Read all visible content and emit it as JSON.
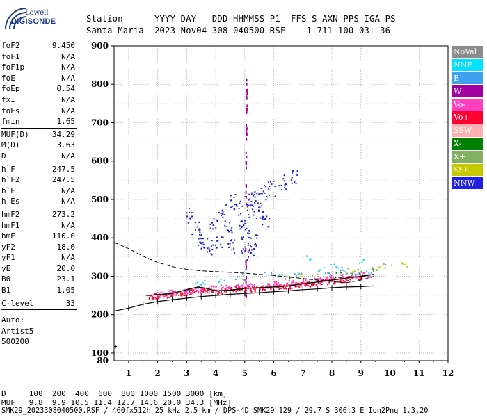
{
  "logo": {
    "line1": "Lowell",
    "line2": "DIGISONDE"
  },
  "header": {
    "line1": "Station      YYYY DAY   DDD HHMMSS P1  FFS S AXN PPS IGA PS",
    "line2": "Santa Maria  2023 Nov04 308 040500 RSF    1 711 100 03+ 36"
  },
  "params_group1": [
    {
      "label": "foF2",
      "value": "9.450"
    },
    {
      "label": "foF1",
      "value": "N/A"
    },
    {
      "label": "foF1p",
      "value": "N/A"
    },
    {
      "label": "foE",
      "value": "N/A"
    },
    {
      "label": "foEp",
      "value": "0.54"
    },
    {
      "label": "fxI",
      "value": "N/A"
    },
    {
      "label": "foEs",
      "value": "N/A"
    },
    {
      "label": "fmin",
      "value": "1.65"
    }
  ],
  "params_group2": [
    {
      "label": "MUF(D)",
      "value": "34.29"
    },
    {
      "label": "M(D)",
      "value": "3.63"
    },
    {
      "label": "D",
      "value": "N/A"
    }
  ],
  "params_group3": [
    {
      "label": "h`F",
      "value": "247.5"
    },
    {
      "label": "h`F2",
      "value": "247.5"
    },
    {
      "label": "h`E",
      "value": "N/A"
    },
    {
      "label": "h`Es",
      "value": "N/A"
    }
  ],
  "params_group4": [
    {
      "label": "hmF2",
      "value": "273.2"
    },
    {
      "label": "hmF1",
      "value": "N/A"
    },
    {
      "label": "hmE",
      "value": "110.0"
    },
    {
      "label": "yF2",
      "value": "18.6"
    },
    {
      "label": "yF1",
      "value": "N/A"
    },
    {
      "label": "yE",
      "value": "20.0"
    },
    {
      "label": "B0",
      "value": "23.1"
    },
    {
      "label": "B1",
      "value": "1.05"
    }
  ],
  "params_group5": [
    {
      "label": "C-level",
      "value": "33"
    }
  ],
  "autoscaling": {
    "line1": "Auto:",
    "line2": "Artist5",
    "line3": "500200"
  },
  "legend": [
    {
      "label": "NoVal",
      "color": "#8c8c8c"
    },
    {
      "label": "NNE",
      "color": "#00e0ff"
    },
    {
      "label": "E",
      "color": "#3fa0f0"
    },
    {
      "label": "W",
      "color": "#a000a0"
    },
    {
      "label": "Vo-",
      "color": "#ff40c0"
    },
    {
      "label": "Vo+",
      "color": "#ff0030"
    },
    {
      "label": "SSW",
      "color": "#ffb0b0"
    },
    {
      "label": "X-",
      "color": "#008000"
    },
    {
      "label": "X+",
      "color": "#80b060"
    },
    {
      "label": "SSE",
      "color": "#c8c800"
    },
    {
      "label": "NNW",
      "color": "#2020e0"
    }
  ],
  "footer": {
    "d_line": "D     100  200  400  600  800 1000 1500 3000 [km]",
    "muf_line": "MUF   9.8  9.9 10.5 11.4 12.7 14.6 20.0 34.3 [MHz]",
    "file_line": "SMK29_2023308040500.RSF / 460fx512h 25 kHz 2.5 km / DPS-4D SMK29 129 / 29.7 S 306.3 E Ion2Png 1.3.20"
  },
  "chart_data": {
    "type": "scatter",
    "title": "",
    "xlabel": "",
    "ylabel": "",
    "xlim": [
      0.5,
      12
    ],
    "ylim": [
      80,
      900
    ],
    "x_ticks": [
      "1",
      "2",
      "3",
      "4",
      "5",
      "6",
      "7",
      "8",
      "9",
      "10",
      "11",
      "12"
    ],
    "y_ticks": [
      "100",
      "200",
      "300",
      "400",
      "500",
      "600",
      "700",
      "800",
      "900"
    ],
    "y_tick_label_80": "80",
    "grid": "dotted",
    "series": [
      {
        "color": "#ff0030",
        "points": [
          [
            1.8,
            247
          ],
          [
            2.0,
            250
          ],
          [
            2.3,
            252
          ],
          [
            2.6,
            255
          ],
          [
            2.9,
            258
          ],
          [
            3.2,
            260
          ],
          [
            3.5,
            263
          ],
          [
            3.8,
            265
          ],
          [
            4.1,
            262
          ],
          [
            4.4,
            266
          ],
          [
            4.7,
            268
          ],
          [
            5.0,
            270
          ],
          [
            5.3,
            268
          ],
          [
            5.6,
            270
          ],
          [
            5.9,
            272
          ],
          [
            6.2,
            274
          ],
          [
            6.5,
            276
          ],
          [
            6.8,
            279
          ],
          [
            7.1,
            281
          ],
          [
            7.4,
            284
          ],
          [
            7.7,
            287
          ],
          [
            8.0,
            289
          ],
          [
            8.3,
            292
          ],
          [
            8.6,
            295
          ],
          [
            8.9,
            298
          ]
        ]
      },
      {
        "color": "#ff40c0",
        "points": [
          [
            2.1,
            254
          ],
          [
            2.5,
            258
          ],
          [
            3.0,
            262
          ],
          [
            3.4,
            266
          ],
          [
            3.9,
            270
          ],
          [
            4.3,
            272
          ],
          [
            4.8,
            274
          ],
          [
            5.2,
            276
          ],
          [
            5.7,
            278
          ],
          [
            6.1,
            282
          ],
          [
            6.6,
            285
          ],
          [
            7.0,
            288
          ],
          [
            7.5,
            292
          ],
          [
            7.9,
            296
          ],
          [
            8.4,
            300
          ],
          [
            8.8,
            304
          ],
          [
            9.2,
            306
          ]
        ]
      },
      {
        "color": "#2020e0",
        "points": [
          [
            3.1,
            460
          ],
          [
            3.3,
            430
          ],
          [
            3.5,
            400
          ],
          [
            3.6,
            380
          ],
          [
            3.9,
            440
          ],
          [
            4.2,
            470
          ],
          [
            4.4,
            430
          ],
          [
            4.6,
            495
          ],
          [
            4.8,
            480
          ],
          [
            4.9,
            445
          ],
          [
            5.0,
            420
          ],
          [
            5.1,
            500
          ],
          [
            5.2,
            475
          ],
          [
            5.3,
            390
          ],
          [
            5.4,
            510
          ],
          [
            5.5,
            470
          ],
          [
            5.6,
            520
          ],
          [
            5.7,
            440
          ],
          [
            5.9,
            530
          ],
          [
            6.3,
            545
          ],
          [
            6.7,
            560
          ],
          [
            4.5,
            380
          ],
          [
            4.1,
            395
          ],
          [
            3.8,
            375
          ],
          [
            5.0,
            380
          ],
          [
            5.2,
            360
          ]
        ]
      },
      {
        "color": "#a000a0",
        "points": [
          [
            5.02,
            520
          ],
          [
            5.03,
            600
          ],
          [
            5.04,
            680
          ],
          [
            5.05,
            760
          ],
          [
            5.05,
            790
          ],
          [
            5.02,
            350
          ],
          [
            5.02,
            280
          ]
        ]
      },
      {
        "color": "#00e0ff",
        "points": [
          [
            7.6,
            320
          ],
          [
            8.1,
            330
          ],
          [
            8.6,
            310
          ],
          [
            9.0,
            340
          ],
          [
            7.2,
            350
          ],
          [
            9.2,
            310
          ],
          [
            3.4,
            280
          ],
          [
            4.2,
            290
          ],
          [
            6.1,
            300
          ]
        ]
      },
      {
        "color": "#3fa0f0",
        "points": [
          [
            7.8,
            310
          ],
          [
            8.3,
            320
          ],
          [
            8.8,
            305
          ],
          [
            6.8,
            310
          ],
          [
            5.8,
            305
          ],
          [
            3.6,
            285
          ],
          [
            4.8,
            300
          ]
        ]
      },
      {
        "color": "#008000",
        "points": [
          [
            8.2,
            305
          ],
          [
            8.9,
            312
          ],
          [
            6.4,
            300
          ],
          [
            9.5,
            320
          ]
        ]
      },
      {
        "color": "#80b060",
        "points": [
          [
            7.4,
            300
          ],
          [
            8.5,
            315
          ],
          [
            4.9,
            290
          ],
          [
            9.9,
            330
          ]
        ]
      },
      {
        "color": "#c8c800",
        "points": [
          [
            8.7,
            310
          ],
          [
            9.6,
            320
          ],
          [
            6.9,
            300
          ],
          [
            10.5,
            330
          ]
        ]
      }
    ],
    "profile_curve": [
      [
        1.6,
        250
      ],
      [
        2.0,
        252
      ],
      [
        2.5,
        255
      ],
      [
        3.0,
        265
      ],
      [
        3.4,
        272
      ],
      [
        3.7,
        268
      ],
      [
        4.0,
        262
      ],
      [
        4.5,
        264
      ],
      [
        5.0,
        268
      ],
      [
        5.5,
        270
      ],
      [
        6.0,
        272
      ],
      [
        6.5,
        275
      ],
      [
        7.0,
        280
      ],
      [
        7.5,
        285
      ],
      [
        8.0,
        290
      ],
      [
        8.5,
        295
      ],
      [
        9.0,
        300
      ],
      [
        9.45,
        305
      ]
    ],
    "dashed_curve": [
      [
        0.5,
        388
      ],
      [
        1.0,
        372
      ],
      [
        1.5,
        352
      ],
      [
        2.0,
        336
      ],
      [
        2.5,
        325
      ],
      [
        3.0,
        318
      ],
      [
        3.5,
        314
      ],
      [
        4.0,
        312
      ],
      [
        4.5,
        310
      ],
      [
        5.0,
        308
      ],
      [
        5.5,
        305
      ],
      [
        6.0,
        302
      ],
      [
        6.5,
        298
      ],
      [
        7.0,
        294
      ],
      [
        7.5,
        290
      ],
      [
        8.0,
        286
      ],
      [
        8.5,
        283
      ],
      [
        9.0,
        290
      ],
      [
        9.45,
        300
      ]
    ],
    "valley_profile": [
      [
        0.5,
        209
      ],
      [
        1.0,
        217
      ],
      [
        1.5,
        227
      ],
      [
        2.0,
        234
      ],
      [
        2.5,
        239
      ],
      [
        3.0,
        243
      ],
      [
        3.5,
        247
      ],
      [
        4.0,
        250
      ],
      [
        4.5,
        253
      ],
      [
        5.0,
        255
      ],
      [
        5.5,
        257
      ],
      [
        6.0,
        260
      ],
      [
        6.5,
        262
      ],
      [
        7.0,
        265
      ],
      [
        7.5,
        267
      ],
      [
        8.0,
        270
      ],
      [
        8.5,
        272
      ],
      [
        9.0,
        273
      ],
      [
        9.45,
        275
      ]
    ]
  }
}
